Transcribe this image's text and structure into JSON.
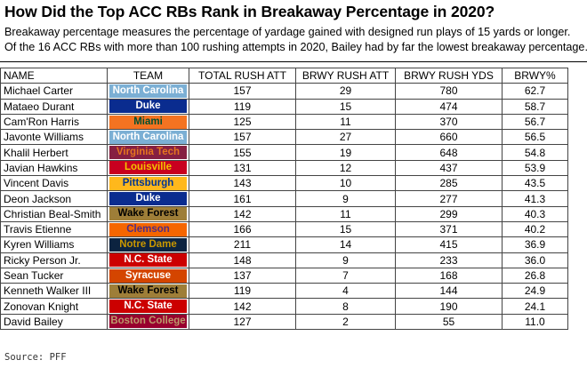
{
  "title": "How Did the Top ACC RBs Rank in Breakaway Percentage in 2020?",
  "subtitle_1": "Breakaway percentage measures the percentage of yardage gained with designed run plays of 15 yards or longer.",
  "subtitle_2": "Of the 16 ACC RBs with more than 100 rushing attempts in 2020, Bailey had by far the lowest breakaway percentage.",
  "columns": [
    "NAME",
    "TEAM",
    "TOTAL RUSH ATT",
    "BRWY RUSH ATT",
    "BRWY RUSH YDS",
    "BRWY%"
  ],
  "rows": [
    {
      "name": "Michael Carter",
      "team": "North Carolina",
      "team_bg": "#7bafd4",
      "team_fg": "#ffffff",
      "att": "157",
      "brwy_att": "29",
      "brwy_yds": "780",
      "pct": "62.7"
    },
    {
      "name": "Mataeo Durant",
      "team": "Duke",
      "team_bg": "#0a2c8f",
      "team_fg": "#ffffff",
      "att": "119",
      "brwy_att": "15",
      "brwy_yds": "474",
      "pct": "58.7"
    },
    {
      "name": "Cam'Ron Harris",
      "team": "Miami",
      "team_bg": "#f47321",
      "team_fg": "#005030",
      "att": "125",
      "brwy_att": "11",
      "brwy_yds": "370",
      "pct": "56.7"
    },
    {
      "name": "Javonte Williams",
      "team": "North Carolina",
      "team_bg": "#7bafd4",
      "team_fg": "#ffffff",
      "att": "157",
      "brwy_att": "27",
      "brwy_yds": "660",
      "pct": "56.5"
    },
    {
      "name": "Khalil Herbert",
      "team": "Virginia Tech",
      "team_bg": "#861f41",
      "team_fg": "#e5751f",
      "att": "155",
      "brwy_att": "19",
      "brwy_yds": "648",
      "pct": "54.8"
    },
    {
      "name": "Javian Hawkins",
      "team": "Louisville",
      "team_bg": "#c9001f",
      "team_fg": "#f2c300",
      "att": "131",
      "brwy_att": "12",
      "brwy_yds": "437",
      "pct": "53.9"
    },
    {
      "name": "Vincent Davis",
      "team": "Pittsburgh",
      "team_bg": "#ffb81c",
      "team_fg": "#003594",
      "att": "143",
      "brwy_att": "10",
      "brwy_yds": "285",
      "pct": "43.5"
    },
    {
      "name": "Deon Jackson",
      "team": "Duke",
      "team_bg": "#0a2c8f",
      "team_fg": "#ffffff",
      "att": "161",
      "brwy_att": "9",
      "brwy_yds": "277",
      "pct": "41.3"
    },
    {
      "name": "Christian Beal-Smith",
      "team": "Wake Forest",
      "team_bg": "#9e7e38",
      "team_fg": "#000000",
      "att": "142",
      "brwy_att": "11",
      "brwy_yds": "299",
      "pct": "40.3"
    },
    {
      "name": "Travis Etienne",
      "team": "Clemson",
      "team_bg": "#f56600",
      "team_fg": "#522d80",
      "att": "166",
      "brwy_att": "15",
      "brwy_yds": "371",
      "pct": "40.2"
    },
    {
      "name": "Kyren Williams",
      "team": "Notre Dame",
      "team_bg": "#0c2340",
      "team_fg": "#c99700",
      "att": "211",
      "brwy_att": "14",
      "brwy_yds": "415",
      "pct": "36.9"
    },
    {
      "name": "Ricky Person Jr.",
      "team": "N.C. State",
      "team_bg": "#cc0000",
      "team_fg": "#ffffff",
      "att": "148",
      "brwy_att": "9",
      "brwy_yds": "233",
      "pct": "36.0"
    },
    {
      "name": "Sean Tucker",
      "team": "Syracuse",
      "team_bg": "#d44500",
      "team_fg": "#ffffff",
      "att": "137",
      "brwy_att": "7",
      "brwy_yds": "168",
      "pct": "26.8"
    },
    {
      "name": "Kenneth Walker III",
      "team": "Wake Forest",
      "team_bg": "#9e7e38",
      "team_fg": "#000000",
      "att": "119",
      "brwy_att": "4",
      "brwy_yds": "144",
      "pct": "24.9"
    },
    {
      "name": "Zonovan Knight",
      "team": "N.C. State",
      "team_bg": "#cc0000",
      "team_fg": "#ffffff",
      "att": "142",
      "brwy_att": "8",
      "brwy_yds": "190",
      "pct": "24.1"
    },
    {
      "name": "David Bailey",
      "team": "Boston College",
      "team_bg": "#98002e",
      "team_fg": "#bc9b6a",
      "att": "127",
      "brwy_att": "2",
      "brwy_yds": "55",
      "pct": "11.0"
    }
  ],
  "source": "Source: PFF"
}
